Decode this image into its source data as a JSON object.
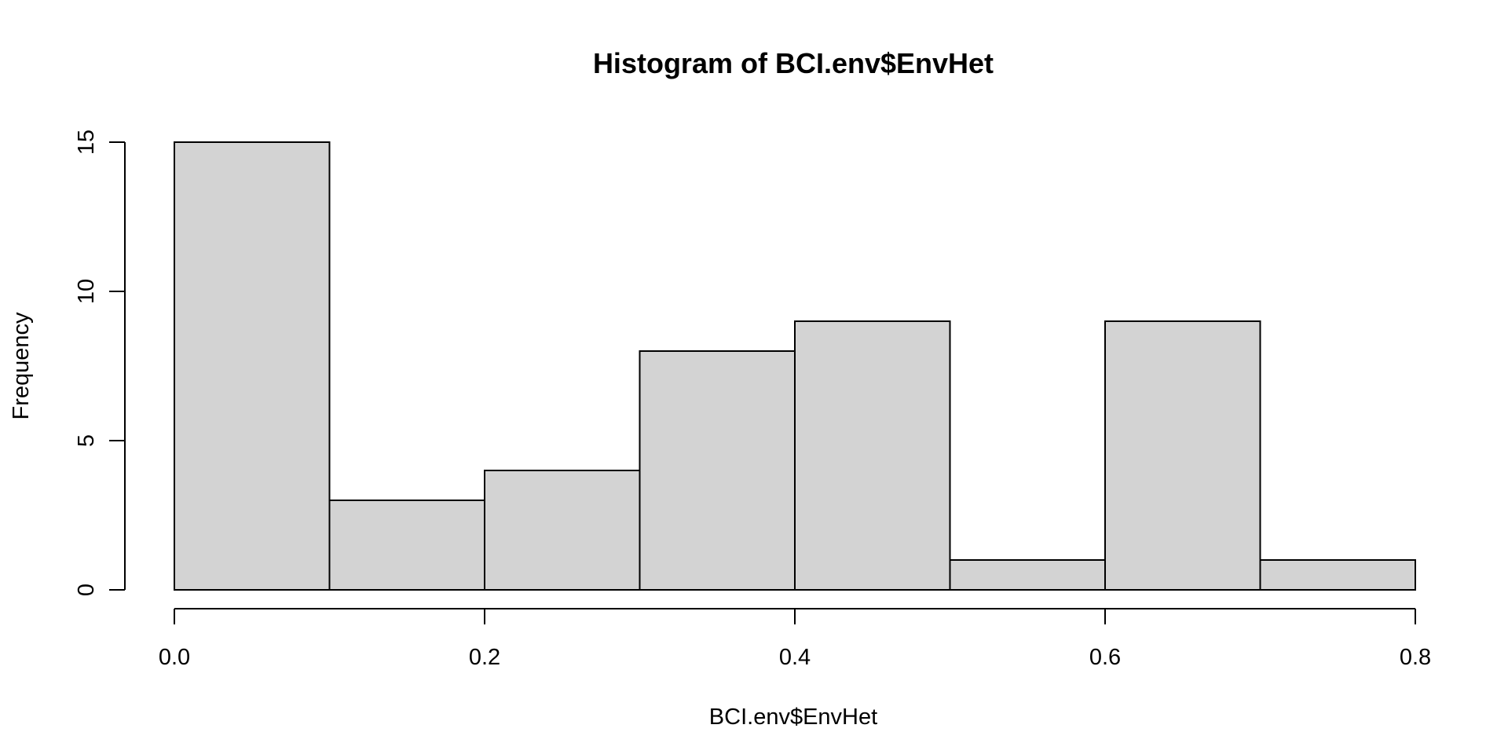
{
  "chart_data": {
    "type": "bar",
    "title": "Histogram of BCI.env$EnvHet",
    "xlabel": "BCI.env$EnvHet",
    "ylabel": "Frequency",
    "bin_edges": [
      0.0,
      0.1,
      0.2,
      0.3,
      0.4,
      0.5,
      0.6,
      0.7,
      0.8
    ],
    "values": [
      15,
      3,
      4,
      8,
      9,
      1,
      9,
      1
    ],
    "xlim": [
      0.0,
      0.8
    ],
    "ylim": [
      0,
      15
    ],
    "x_ticks": [
      0.0,
      0.2,
      0.4,
      0.6,
      0.8
    ],
    "x_tick_labels": [
      "0.0",
      "0.2",
      "0.4",
      "0.6",
      "0.8"
    ],
    "y_ticks": [
      0,
      5,
      10,
      15
    ],
    "y_tick_labels": [
      "0",
      "5",
      "10",
      "15"
    ],
    "grid": false,
    "legend": "none",
    "bar_fill": "#d3d3d3",
    "bar_stroke": "#000000"
  }
}
